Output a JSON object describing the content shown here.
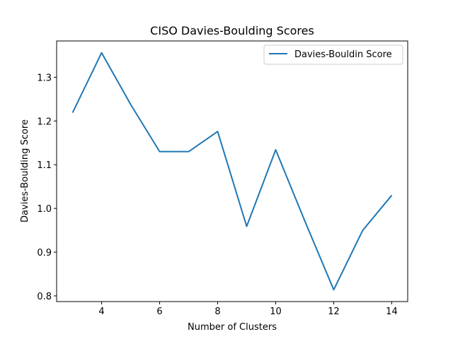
{
  "chart_data": {
    "type": "line",
    "title": "CISO Davies-Boulding Scores",
    "xlabel": "Number of Clusters",
    "ylabel": "Davies-Boulding Score",
    "xlim": [
      2.45,
      14.55
    ],
    "ylim": [
      0.787,
      1.383
    ],
    "xticks": [
      4,
      6,
      8,
      10,
      12,
      14
    ],
    "yticks": [
      0.8,
      0.9,
      1.0,
      1.1,
      1.2,
      1.3
    ],
    "xtick_labels": [
      "4",
      "6",
      "8",
      "10",
      "12",
      "14"
    ],
    "ytick_labels": [
      "0.8",
      "0.9",
      "1.0",
      "1.1",
      "1.2",
      "1.3"
    ],
    "grid": false,
    "legend_position": "top-right",
    "series": [
      {
        "name": "Davies-Bouldin Score",
        "color": "#1f77b4",
        "x": [
          3,
          4,
          5,
          6,
          7,
          8,
          9,
          10,
          11,
          12,
          13,
          14
        ],
        "y": [
          1.219,
          1.356,
          1.238,
          1.13,
          1.13,
          1.176,
          0.959,
          1.134,
          0.972,
          0.814,
          0.95,
          1.03
        ]
      }
    ]
  }
}
